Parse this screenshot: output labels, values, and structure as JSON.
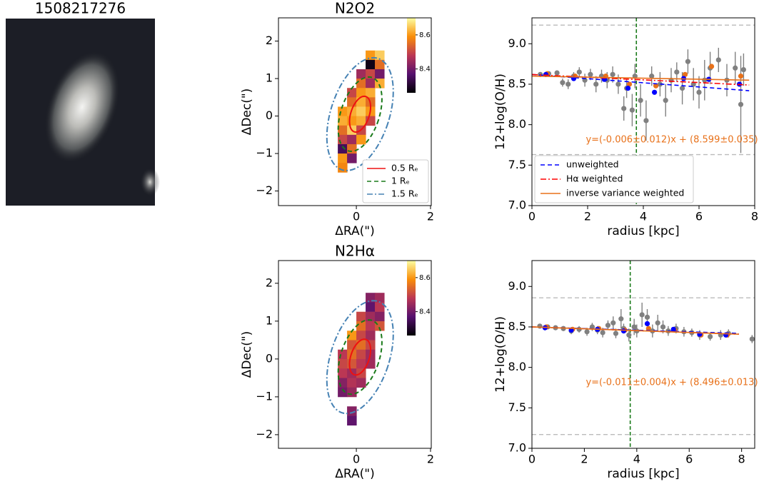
{
  "chart_data": [
    {
      "type": "image",
      "title": "1508217276"
    },
    {
      "type": "heatmap",
      "title": "N2O2",
      "xlabel": "ΔRA(\")",
      "ylabel": "ΔDec(\")",
      "xlim": [
        -2.1,
        2.02
      ],
      "ylim": [
        -2.39,
        2.62
      ],
      "xticks": [
        0,
        2
      ],
      "yticks": [
        {
          "value": -2,
          "label": "−2"
        },
        {
          "value": -1,
          "label": "−1"
        },
        0,
        1,
        2
      ],
      "clim": [
        8.26,
        8.7
      ],
      "cticks": [
        8.4,
        8.6
      ],
      "x": [
        0.375,
        0.625,
        0.375,
        0.625,
        0.125,
        0.375,
        0.625,
        0.125,
        0.375,
        0.625,
        -0.125,
        0.125,
        0.375,
        -0.125,
        0.125,
        0.375,
        -0.375,
        -0.125,
        0.125,
        0.375,
        -0.375,
        -0.125,
        0.125,
        0.375,
        -0.375,
        -0.125,
        0.125,
        -0.375,
        -0.125,
        0.125,
        -0.375,
        -0.125,
        -0.375,
        -0.125,
        -0.375
      ],
      "y": [
        1.625,
        1.625,
        1.375,
        1.375,
        1.125,
        1.125,
        1.125,
        0.875,
        0.875,
        0.875,
        0.625,
        0.625,
        0.625,
        0.375,
        0.375,
        0.375,
        0.125,
        0.125,
        0.125,
        0.125,
        -0.125,
        -0.125,
        -0.125,
        -0.125,
        -0.375,
        -0.375,
        -0.375,
        -0.625,
        -0.625,
        -0.625,
        -0.875,
        -0.875,
        -1.125,
        -1.125,
        -1.375
      ],
      "values": [
        8.6,
        8.65,
        8.28,
        8.55,
        8.45,
        8.5,
        8.4,
        8.55,
        8.45,
        8.62,
        8.5,
        8.6,
        8.62,
        8.55,
        8.62,
        8.55,
        8.6,
        8.62,
        8.65,
        8.6,
        8.62,
        8.6,
        8.62,
        8.5,
        8.55,
        8.65,
        8.5,
        8.5,
        8.45,
        8.6,
        8.35,
        8.55,
        8.6,
        8.4,
        8.58
      ],
      "contours": [
        {
          "name": "0.5 Rₑ",
          "color": "#ee1111",
          "style": "solid"
        },
        {
          "name": "1 Rₑ",
          "color": "#1a7a1a",
          "style": "dashed"
        },
        {
          "name": "1.5 Rₑ",
          "color": "#4682b4",
          "style": "dashdot"
        }
      ],
      "legend": "lower right"
    },
    {
      "type": "scatter",
      "xlabel": "radius [kpc]",
      "ylabel": "12+log(O/H)",
      "xlim": [
        0,
        8
      ],
      "ylim": [
        7,
        9.32
      ],
      "xticks": [
        0,
        2,
        4,
        6,
        8
      ],
      "yticks": [
        {
          "value": 7,
          "label": "7.0"
        },
        7.5,
        {
          "value": 8,
          "label": "8.0"
        },
        8.5,
        {
          "value": 9,
          "label": "9.0"
        }
      ],
      "hlines": [
        9.23,
        7.63
      ],
      "hline_color": "#bbbbbb",
      "vline": 3.75,
      "vline_color": "#1a7a1a",
      "annotation": "y=(-0.006±0.012)x + (8.599±0.035)",
      "annotation_color": "#e8711a",
      "points": [
        {
          "color": "#808080",
          "x": [
            0.3,
            0.6,
            0.9,
            1.1,
            1.3,
            1.5,
            1.7,
            1.9,
            2.1,
            2.3,
            2.5,
            2.7,
            2.9,
            3.1,
            3.3,
            3.4,
            3.6,
            3.7,
            3.9,
            4.1,
            4.3,
            4.6,
            4.8,
            5.0,
            5.2,
            5.4,
            5.6,
            5.8,
            6.0,
            6.2,
            6.4,
            6.7,
            7.0,
            7.3,
            7.5,
            7.6
          ],
          "values": [
            8.62,
            8.63,
            8.64,
            8.52,
            8.5,
            8.6,
            8.65,
            8.55,
            8.62,
            8.5,
            8.6,
            8.55,
            8.62,
            8.5,
            8.2,
            8.45,
            8.18,
            8.6,
            8.3,
            8.05,
            8.6,
            8.5,
            8.3,
            8.55,
            8.65,
            8.45,
            8.78,
            8.5,
            8.4,
            8.55,
            8.7,
            8.8,
            8.55,
            8.7,
            8.25,
            8.68
          ],
          "errors": [
            0.02,
            0.02,
            0.03,
            0.05,
            0.06,
            0.05,
            0.06,
            0.08,
            0.07,
            0.1,
            0.08,
            0.1,
            0.1,
            0.12,
            0.15,
            0.12,
            0.2,
            0.15,
            0.2,
            0.25,
            0.12,
            0.15,
            0.2,
            0.15,
            0.12,
            0.2,
            0.15,
            0.2,
            0.2,
            0.25,
            0.2,
            0.15,
            0.2,
            0.2,
            0.6,
            0.2
          ]
        },
        {
          "color": "#e8711a",
          "x": [
            0.55,
            1.55,
            2.65,
            3.5,
            4.45,
            5.5,
            6.45,
            7.5
          ],
          "values": [
            8.63,
            8.6,
            8.6,
            8.5,
            8.48,
            8.62,
            8.72,
            8.6
          ]
        },
        {
          "color": "#0000ff",
          "x": [
            0.5,
            1.5,
            2.6,
            3.45,
            4.4,
            5.45,
            6.35,
            7.45
          ],
          "values": [
            8.62,
            8.57,
            8.56,
            8.45,
            8.4,
            8.57,
            8.56,
            8.5
          ]
        }
      ],
      "series": [
        {
          "name": "unweighted",
          "color": "#0000ff",
          "style": "dashed",
          "x": [
            0,
            7.8
          ],
          "values": [
            8.62,
            8.42
          ]
        },
        {
          "name": "Hα weighted",
          "color": "#ff0000",
          "style": "dashdot",
          "x": [
            0,
            7.8
          ],
          "values": [
            8.62,
            8.49
          ]
        },
        {
          "name": "inverse variance weighted",
          "color": "#e8711a",
          "style": "solid",
          "x": [
            0,
            7.8
          ],
          "values": [
            8.6,
            8.55
          ]
        }
      ],
      "legend": "lower left"
    },
    {
      "type": "heatmap",
      "title": "N2Hα",
      "xlabel": "ΔRA(\")",
      "ylabel": "ΔDec(\")",
      "xlim": [
        -2.1,
        2.02
      ],
      "ylim": [
        -2.36,
        2.6
      ],
      "xticks": [
        0,
        2
      ],
      "yticks": [
        {
          "value": -2,
          "label": "−2"
        },
        {
          "value": -1,
          "label": "−1"
        },
        0,
        1,
        2
      ],
      "clim": [
        8.26,
        8.7
      ],
      "cticks": [
        8.4,
        8.6
      ],
      "x": [
        0.375,
        0.625,
        0.375,
        0.625,
        0.125,
        0.375,
        0.625,
        0.125,
        0.375,
        0.625,
        -0.125,
        0.125,
        0.375,
        -0.125,
        0.125,
        0.375,
        -0.375,
        -0.125,
        0.125,
        0.375,
        -0.375,
        -0.125,
        0.125,
        0.375,
        -0.375,
        -0.125,
        0.125,
        -0.375,
        -0.125,
        0.125,
        -0.375,
        -0.125,
        -0.125,
        -0.125
      ],
      "y": [
        1.625,
        1.625,
        1.375,
        1.375,
        1.125,
        1.125,
        1.125,
        0.875,
        0.875,
        0.875,
        0.625,
        0.625,
        0.625,
        0.375,
        0.375,
        0.375,
        0.125,
        0.125,
        0.125,
        0.125,
        -0.125,
        -0.125,
        -0.125,
        -0.125,
        -0.375,
        -0.375,
        -0.375,
        -0.625,
        -0.625,
        -0.625,
        -0.875,
        -0.875,
        -1.375,
        -1.625
      ],
      "values": [
        8.42,
        8.45,
        8.38,
        8.48,
        8.5,
        8.45,
        8.42,
        8.55,
        8.48,
        8.52,
        8.6,
        8.5,
        8.45,
        8.52,
        8.55,
        8.5,
        8.48,
        8.55,
        8.5,
        8.45,
        8.5,
        8.52,
        8.48,
        8.45,
        8.48,
        8.45,
        8.5,
        8.42,
        8.47,
        8.45,
        8.4,
        8.44,
        8.42,
        8.38
      ],
      "contours": [
        {
          "color": "#ee1111",
          "style": "solid"
        },
        {
          "color": "#1a7a1a",
          "style": "dashed"
        },
        {
          "color": "#4682b4",
          "style": "dashdot"
        }
      ]
    },
    {
      "type": "scatter",
      "xlabel": "radius [kpc]",
      "ylabel": "12+log(O/H)",
      "xlim": [
        0,
        8.5
      ],
      "ylim": [
        7,
        9.32
      ],
      "xticks": [
        0,
        2,
        4,
        6,
        8
      ],
      "yticks": [
        {
          "value": 7,
          "label": "7.0"
        },
        7.5,
        {
          "value": 8,
          "label": "8.0"
        },
        8.5,
        {
          "value": 9,
          "label": "9.0"
        }
      ],
      "hlines": [
        8.86,
        7.17
      ],
      "hline_color": "#bbbbbb",
      "vline": 3.75,
      "vline_color": "#1a7a1a",
      "annotation": "y=(-0.011±0.004)x + (8.496±0.013)",
      "annotation_color": "#e8711a",
      "points": [
        {
          "color": "#808080",
          "x": [
            0.3,
            0.6,
            0.9,
            1.2,
            1.5,
            1.8,
            2.1,
            2.3,
            2.5,
            2.7,
            2.9,
            3.1,
            3.2,
            3.4,
            3.5,
            3.7,
            3.9,
            4.0,
            4.2,
            4.4,
            4.6,
            4.8,
            5.0,
            5.2,
            5.5,
            5.8,
            6.1,
            6.4,
            6.8,
            7.2,
            7.5,
            8.4
          ],
          "values": [
            8.51,
            8.5,
            8.49,
            8.48,
            8.45,
            8.47,
            8.44,
            8.5,
            8.46,
            8.43,
            8.52,
            8.55,
            8.42,
            8.6,
            8.48,
            8.4,
            8.5,
            8.45,
            8.65,
            8.62,
            8.45,
            8.55,
            8.5,
            8.45,
            8.48,
            8.44,
            8.43,
            8.4,
            8.38,
            8.4,
            8.42,
            8.35
          ],
          "errors": [
            0.02,
            0.02,
            0.03,
            0.03,
            0.04,
            0.04,
            0.05,
            0.05,
            0.05,
            0.06,
            0.06,
            0.08,
            0.06,
            0.12,
            0.06,
            0.08,
            0.1,
            0.08,
            0.15,
            0.1,
            0.08,
            0.1,
            0.08,
            0.06,
            0.06,
            0.06,
            0.05,
            0.06,
            0.05,
            0.06,
            0.05,
            0.05
          ]
        },
        {
          "color": "#e8711a",
          "x": [
            0.55,
            1.55,
            2.55,
            3.55,
            4.45,
            5.45,
            6.45,
            7.45
          ],
          "values": [
            8.5,
            8.47,
            8.48,
            8.46,
            8.48,
            8.46,
            8.4,
            8.4
          ]
        },
        {
          "color": "#0000ff",
          "x": [
            0.5,
            1.5,
            2.5,
            3.5,
            4.4,
            5.4,
            6.4,
            7.4
          ],
          "values": [
            8.49,
            8.46,
            8.47,
            8.45,
            8.54,
            8.47,
            8.41,
            8.4
          ]
        }
      ],
      "series": [
        {
          "color": "#0000ff",
          "style": "dashed",
          "x": [
            0,
            7.9
          ],
          "values": [
            8.5,
            8.42
          ]
        },
        {
          "color": "#ff0000",
          "style": "dashdot",
          "x": [
            0,
            7.9
          ],
          "values": [
            8.5,
            8.41
          ]
        },
        {
          "color": "#e8711a",
          "style": "solid",
          "x": [
            0,
            7.9
          ],
          "values": [
            8.5,
            8.41
          ]
        }
      ]
    }
  ]
}
